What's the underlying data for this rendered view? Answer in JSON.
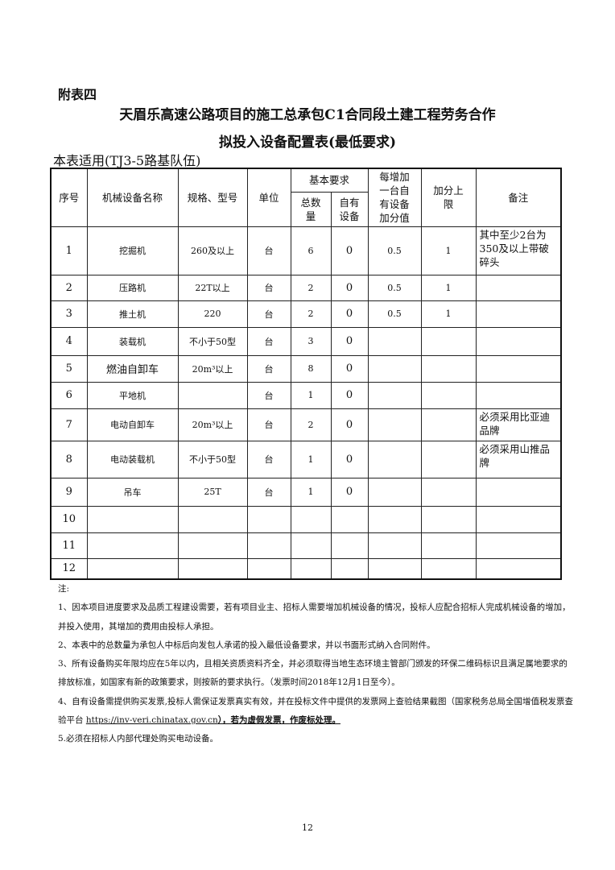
{
  "appendix": "附表四",
  "title_line1": "天眉乐高速公路项目的施工总承包C1合同段土建工程劳务合作",
  "title_line2": "拟投入设备配置表(最低要求)",
  "scope": "本表适用(TJ3-5路基队伍)",
  "headers": {
    "no": "序号",
    "name": "机械设备名称",
    "spec": "规格、型号",
    "unit": "单位",
    "basic": "基本要求",
    "total": "总数量",
    "own": "自有设备",
    "bonus": "每增加一台自有设备加分值",
    "cap": "加分上限",
    "remark": "备注"
  },
  "rows": [
    {
      "no": "1",
      "name": "挖掘机",
      "spec": "260及以上",
      "unit": "台",
      "total": "6",
      "own": "0",
      "bonus": "0.5",
      "cap": "1",
      "remark": "其中至少2台为350及以上带破碎头"
    },
    {
      "no": "2",
      "name": "压路机",
      "spec": "22T以上",
      "unit": "台",
      "total": "2",
      "own": "0",
      "bonus": "0.5",
      "cap": "1",
      "remark": ""
    },
    {
      "no": "3",
      "name": "推土机",
      "spec": "220",
      "unit": "台",
      "total": "2",
      "own": "0",
      "bonus": "0.5",
      "cap": "1",
      "remark": ""
    },
    {
      "no": "4",
      "name": "装载机",
      "spec": "不小于50型",
      "unit": "台",
      "total": "3",
      "own": "0",
      "bonus": "",
      "cap": "",
      "remark": ""
    },
    {
      "no": "5",
      "name": "燃油自卸车",
      "spec": "20m³以上",
      "unit": "台",
      "total": "8",
      "own": "0",
      "bonus": "",
      "cap": "",
      "remark": ""
    },
    {
      "no": "6",
      "name": "平地机",
      "spec": "",
      "unit": "台",
      "total": "1",
      "own": "0",
      "bonus": "",
      "cap": "",
      "remark": ""
    },
    {
      "no": "7",
      "name": "电动自卸车",
      "spec": "20m³以上",
      "unit": "台",
      "total": "2",
      "own": "0",
      "bonus": "",
      "cap": "",
      "remark": "必须采用比亚迪品牌"
    },
    {
      "no": "8",
      "name": "电动装载机",
      "spec": "不小于50型",
      "unit": "台",
      "total": "1",
      "own": "0",
      "bonus": "",
      "cap": "",
      "remark": "必须采用山推品牌"
    },
    {
      "no": "9",
      "name": "吊车",
      "spec": "25T",
      "unit": "台",
      "total": "1",
      "own": "0",
      "bonus": "",
      "cap": "",
      "remark": ""
    },
    {
      "no": "10",
      "name": "",
      "spec": "",
      "unit": "",
      "total": "",
      "own": "",
      "bonus": "",
      "cap": "",
      "remark": ""
    },
    {
      "no": "11",
      "name": "",
      "spec": "",
      "unit": "",
      "total": "",
      "own": "",
      "bonus": "",
      "cap": "",
      "remark": ""
    },
    {
      "no": "12",
      "name": "",
      "spec": "",
      "unit": "",
      "total": "",
      "own": "",
      "bonus": "",
      "cap": "",
      "remark": ""
    }
  ],
  "notes": {
    "label": "注:",
    "n1": "1、因本项目进度要求及品质工程建设需要，若有项目业主、招标人需要增加机械设备的情况，投标人应配合招标人完成机械设备的增加，并投入使用，其增加的费用由投标人承担。",
    "n2": "2、本表中的总数量为承包人中标后向发包人承诺的投入最低设备要求，并以书面形式纳入合同附件。",
    "n3": "3、所有设备购买年限均应在5年以内，且相关资质资料齐全，并必须取得当地生态环境主管部门颁发的环保二维码标识且满足属地要求的排放标准，如国家有新的政策要求，则按新的要求执行。（发票时间2018年12月1日至今）。",
    "n4a": "4、自有设备需提供购买发票,投标人需保证发票真实有效，并在投标文件中提供的发票网上查验结果截图（国家税务总局全国增值税发票查验平台 ",
    "n4url": "https://inv-veri.chinatax.gov.cn",
    "n4b": "），若为虚假发票，作废标处理。",
    "n5": "5.必须在招标人内部代理处购买电动设备。"
  },
  "page_number": "12"
}
